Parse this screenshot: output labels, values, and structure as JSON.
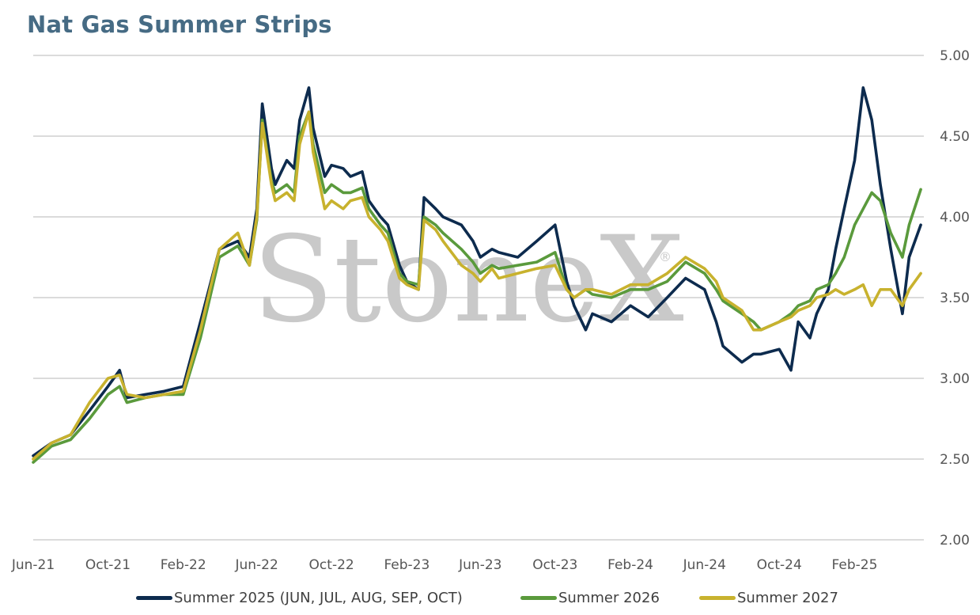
{
  "title": "Nat Gas Summer Strips",
  "watermark": {
    "text": "StoneX",
    "mark": "®"
  },
  "colors": {
    "s2025": "#0d2b4e",
    "s2026": "#5a9a3c",
    "s2027": "#c8b22e",
    "grid": "#cfcfcf",
    "title": "#466b84"
  },
  "chart_data": {
    "type": "line",
    "title": "Nat Gas Summer Strips",
    "xlabel": "",
    "ylabel": "",
    "x_ticks": [
      "Jun-21",
      "Oct-21",
      "Feb-22",
      "Jun-22",
      "Oct-22",
      "Feb-23",
      "Jun-23",
      "Oct-23",
      "Feb-24",
      "Jun-24",
      "Oct-24",
      "Feb-25"
    ],
    "y_ticks": [
      "5.00",
      "4.50",
      "4.00",
      "3.50",
      "3.00",
      "2.50",
      "2.00"
    ],
    "ylim": [
      2.0,
      5.0
    ],
    "y_axis_side": "right",
    "grid": true,
    "legend_position": "bottom",
    "series": [
      {
        "name": "Summer 2025 (JUN, JUL, AUG, SEP, OCT)",
        "color": "#0d2b4e",
        "x": [
          "2021-06-01",
          "2021-07-01",
          "2021-08-01",
          "2021-09-01",
          "2021-10-01",
          "2021-10-20",
          "2021-11-01",
          "2021-12-01",
          "2022-01-01",
          "2022-02-01",
          "2022-03-01",
          "2022-04-01",
          "2022-05-01",
          "2022-05-20",
          "2022-06-01",
          "2022-06-10",
          "2022-06-25",
          "2022-07-01",
          "2022-07-20",
          "2022-08-01",
          "2022-08-10",
          "2022-08-25",
          "2022-09-01",
          "2022-09-20",
          "2022-10-01",
          "2022-10-20",
          "2022-11-01",
          "2022-11-20",
          "2022-12-01",
          "2022-12-20",
          "2023-01-01",
          "2023-01-20",
          "2023-02-01",
          "2023-02-20",
          "2023-03-01",
          "2023-03-20",
          "2023-04-01",
          "2023-05-01",
          "2023-05-20",
          "2023-06-01",
          "2023-06-20",
          "2023-07-01",
          "2023-08-01",
          "2023-09-01",
          "2023-10-01",
          "2023-10-20",
          "2023-11-01",
          "2023-11-20",
          "2023-12-01",
          "2024-01-01",
          "2024-02-01",
          "2024-03-01",
          "2024-04-01",
          "2024-05-01",
          "2024-06-01",
          "2024-06-20",
          "2024-07-01",
          "2024-08-01",
          "2024-08-20",
          "2024-09-01",
          "2024-10-01",
          "2024-10-20",
          "2024-11-01",
          "2024-11-20",
          "2024-12-01",
          "2024-12-20",
          "2025-01-01",
          "2025-01-15",
          "2025-02-01",
          "2025-02-15",
          "2025-03-01",
          "2025-03-15",
          "2025-04-01",
          "2025-04-20",
          "2025-05-01",
          "2025-05-20"
        ],
        "values": [
          2.52,
          2.6,
          2.65,
          2.8,
          2.95,
          3.05,
          2.88,
          2.9,
          2.92,
          2.95,
          3.35,
          3.8,
          3.85,
          3.75,
          4.05,
          4.7,
          4.3,
          4.2,
          4.35,
          4.3,
          4.6,
          4.8,
          4.55,
          4.25,
          4.32,
          4.3,
          4.25,
          4.28,
          4.1,
          4.0,
          3.95,
          3.7,
          3.6,
          3.55,
          4.12,
          4.05,
          4.0,
          3.95,
          3.85,
          3.75,
          3.8,
          3.78,
          3.75,
          3.85,
          3.95,
          3.6,
          3.45,
          3.3,
          3.4,
          3.35,
          3.45,
          3.38,
          3.5,
          3.62,
          3.55,
          3.35,
          3.2,
          3.1,
          3.15,
          3.15,
          3.18,
          3.05,
          3.35,
          3.25,
          3.4,
          3.55,
          3.8,
          4.05,
          4.35,
          4.8,
          4.6,
          4.2,
          3.8,
          3.4,
          3.75,
          3.95
        ]
      },
      {
        "name": "Summer 2026",
        "color": "#5a9a3c",
        "x": [
          "2021-06-01",
          "2021-07-01",
          "2021-08-01",
          "2021-09-01",
          "2021-10-01",
          "2021-10-20",
          "2021-11-01",
          "2021-12-01",
          "2022-01-01",
          "2022-02-01",
          "2022-03-01",
          "2022-04-01",
          "2022-05-01",
          "2022-05-20",
          "2022-06-01",
          "2022-06-10",
          "2022-06-25",
          "2022-07-01",
          "2022-07-20",
          "2022-08-01",
          "2022-08-10",
          "2022-08-25",
          "2022-09-01",
          "2022-09-20",
          "2022-10-01",
          "2022-10-20",
          "2022-11-01",
          "2022-11-20",
          "2022-12-01",
          "2022-12-20",
          "2023-01-01",
          "2023-01-20",
          "2023-02-01",
          "2023-02-20",
          "2023-03-01",
          "2023-03-20",
          "2023-04-01",
          "2023-05-01",
          "2023-05-20",
          "2023-06-01",
          "2023-06-20",
          "2023-07-01",
          "2023-08-01",
          "2023-09-01",
          "2023-10-01",
          "2023-10-20",
          "2023-11-01",
          "2023-11-20",
          "2023-12-01",
          "2024-01-01",
          "2024-02-01",
          "2024-03-01",
          "2024-04-01",
          "2024-05-01",
          "2024-06-01",
          "2024-06-20",
          "2024-07-01",
          "2024-08-01",
          "2024-08-20",
          "2024-09-01",
          "2024-10-01",
          "2024-10-20",
          "2024-11-01",
          "2024-11-20",
          "2024-12-01",
          "2024-12-20",
          "2025-01-01",
          "2025-01-15",
          "2025-02-01",
          "2025-02-15",
          "2025-03-01",
          "2025-03-15",
          "2025-04-01",
          "2025-04-20",
          "2025-05-01",
          "2025-05-20"
        ],
        "values": [
          2.48,
          2.58,
          2.62,
          2.75,
          2.9,
          2.95,
          2.85,
          2.88,
          2.9,
          2.9,
          3.25,
          3.75,
          3.82,
          3.7,
          3.98,
          4.6,
          4.22,
          4.15,
          4.2,
          4.15,
          4.5,
          4.65,
          4.45,
          4.15,
          4.2,
          4.15,
          4.15,
          4.18,
          4.05,
          3.95,
          3.9,
          3.65,
          3.6,
          3.58,
          4.0,
          3.95,
          3.9,
          3.8,
          3.72,
          3.65,
          3.7,
          3.68,
          3.7,
          3.72,
          3.78,
          3.55,
          3.5,
          3.55,
          3.52,
          3.5,
          3.55,
          3.55,
          3.6,
          3.72,
          3.65,
          3.55,
          3.48,
          3.4,
          3.35,
          3.3,
          3.35,
          3.4,
          3.45,
          3.48,
          3.55,
          3.58,
          3.65,
          3.75,
          3.95,
          4.05,
          4.15,
          4.1,
          3.9,
          3.75,
          3.95,
          4.17
        ]
      },
      {
        "name": "Summer 2027",
        "color": "#c8b22e",
        "x": [
          "2021-06-01",
          "2021-07-01",
          "2021-08-01",
          "2021-09-01",
          "2021-10-01",
          "2021-10-20",
          "2021-11-01",
          "2021-12-01",
          "2022-01-01",
          "2022-02-01",
          "2022-03-01",
          "2022-04-01",
          "2022-05-01",
          "2022-05-20",
          "2022-06-01",
          "2022-06-10",
          "2022-06-25",
          "2022-07-01",
          "2022-07-20",
          "2022-08-01",
          "2022-08-10",
          "2022-08-25",
          "2022-09-01",
          "2022-09-20",
          "2022-10-01",
          "2022-10-20",
          "2022-11-01",
          "2022-11-20",
          "2022-12-01",
          "2022-12-20",
          "2023-01-01",
          "2023-01-20",
          "2023-02-01",
          "2023-02-20",
          "2023-03-01",
          "2023-03-20",
          "2023-04-01",
          "2023-05-01",
          "2023-05-20",
          "2023-06-01",
          "2023-06-20",
          "2023-07-01",
          "2023-08-01",
          "2023-09-01",
          "2023-10-01",
          "2023-10-20",
          "2023-11-01",
          "2023-11-20",
          "2023-12-01",
          "2024-01-01",
          "2024-02-01",
          "2024-03-01",
          "2024-04-01",
          "2024-05-01",
          "2024-06-01",
          "2024-06-20",
          "2024-07-01",
          "2024-08-01",
          "2024-08-20",
          "2024-09-01",
          "2024-10-01",
          "2024-10-20",
          "2024-11-01",
          "2024-11-20",
          "2024-12-01",
          "2024-12-20",
          "2025-01-01",
          "2025-01-15",
          "2025-02-01",
          "2025-02-15",
          "2025-03-01",
          "2025-03-15",
          "2025-04-01",
          "2025-04-20",
          "2025-05-01",
          "2025-05-20"
        ],
        "values": [
          2.5,
          2.6,
          2.65,
          2.85,
          3.0,
          3.02,
          2.9,
          2.88,
          2.9,
          2.92,
          3.3,
          3.8,
          3.9,
          3.7,
          4.0,
          4.58,
          4.2,
          4.1,
          4.15,
          4.1,
          4.45,
          4.65,
          4.4,
          4.05,
          4.1,
          4.05,
          4.1,
          4.12,
          4.0,
          3.92,
          3.85,
          3.62,
          3.58,
          3.55,
          3.98,
          3.92,
          3.85,
          3.7,
          3.65,
          3.6,
          3.68,
          3.62,
          3.65,
          3.68,
          3.7,
          3.55,
          3.5,
          3.55,
          3.55,
          3.52,
          3.58,
          3.58,
          3.65,
          3.75,
          3.68,
          3.6,
          3.5,
          3.42,
          3.3,
          3.3,
          3.35,
          3.38,
          3.42,
          3.45,
          3.5,
          3.52,
          3.55,
          3.52,
          3.55,
          3.58,
          3.45,
          3.55,
          3.55,
          3.45,
          3.55,
          3.65
        ]
      }
    ]
  }
}
